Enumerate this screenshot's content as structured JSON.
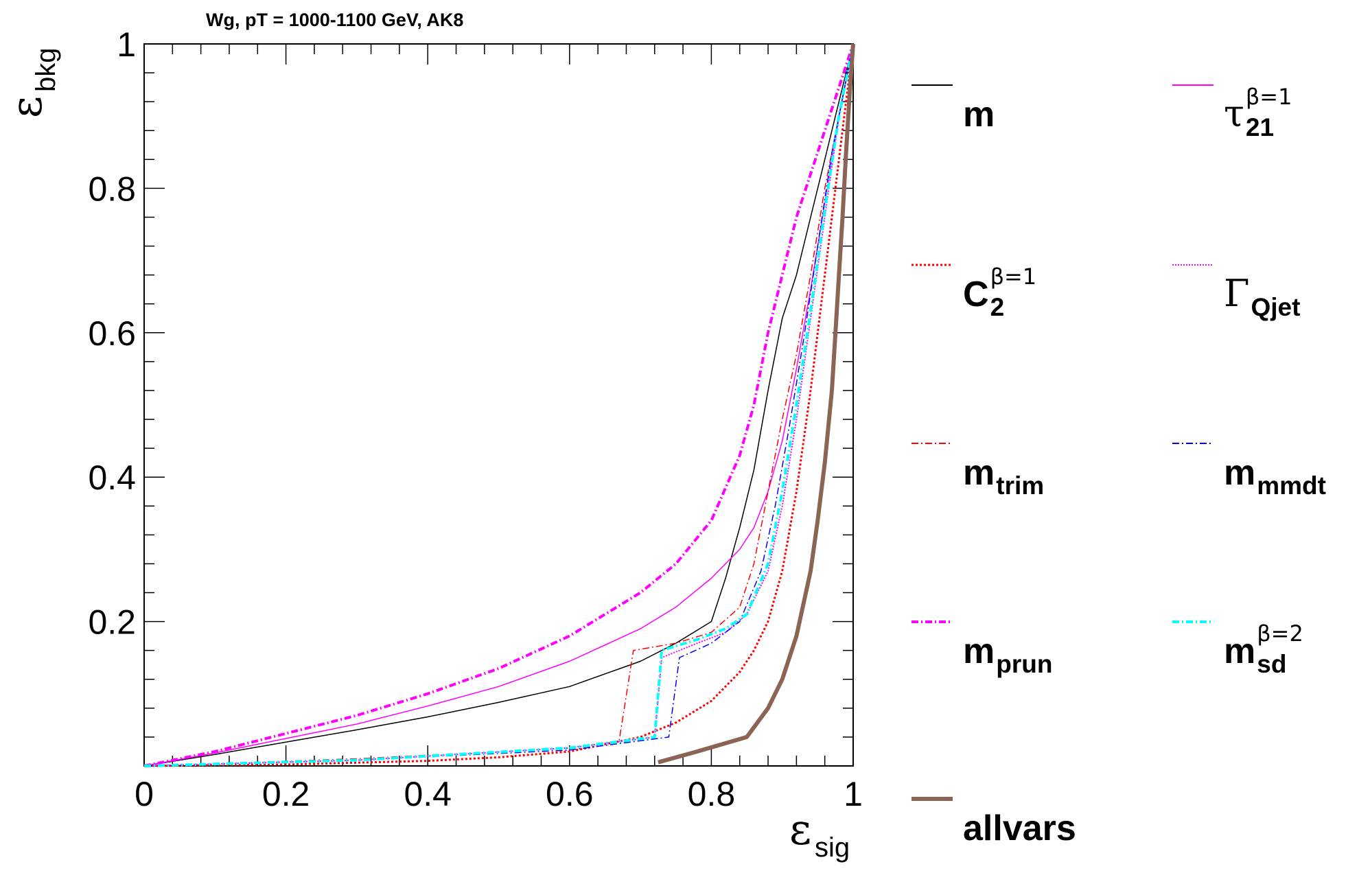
{
  "chart_data": {
    "type": "line",
    "title": "Wg, pT = 1000-1100 GeV, AK8",
    "xlabel": {
      "symbol": "ε",
      "sub": "sig"
    },
    "ylabel": {
      "symbol": "ε",
      "sub": "bkg"
    },
    "xlim": [
      0,
      1
    ],
    "ylim": [
      0,
      1
    ],
    "x_ticks": [
      "0",
      "0.2",
      "0.4",
      "0.6",
      "0.8",
      "1"
    ],
    "y_ticks": [
      "0.2",
      "0.4",
      "0.6",
      "0.8",
      "1"
    ],
    "grid": false,
    "legend": "right",
    "series": [
      {
        "key": "m",
        "color": "#000000",
        "dash": "",
        "width": 1.5,
        "label": {
          "main": "m",
          "sub": "",
          "sup": ""
        },
        "x": [
          0,
          0.1,
          0.2,
          0.3,
          0.4,
          0.5,
          0.6,
          0.7,
          0.75,
          0.8,
          0.82,
          0.84,
          0.86,
          0.88,
          0.9,
          0.92,
          0.94,
          0.96,
          0.98,
          1.0
        ],
        "y": [
          0,
          0.016,
          0.033,
          0.05,
          0.068,
          0.088,
          0.11,
          0.145,
          0.17,
          0.2,
          0.26,
          0.33,
          0.41,
          0.52,
          0.62,
          0.68,
          0.76,
          0.84,
          0.92,
          1.0
        ]
      },
      {
        "key": "tau21",
        "color": "#ff00ff",
        "dash": "",
        "width": 1.5,
        "label": {
          "main": "τ",
          "sub": "21",
          "sup": "β=1"
        },
        "x": [
          0,
          0.1,
          0.2,
          0.3,
          0.4,
          0.5,
          0.6,
          0.7,
          0.75,
          0.8,
          0.84,
          0.86,
          0.88,
          0.9,
          0.92,
          0.94,
          0.96,
          0.98,
          1.0
        ],
        "y": [
          0,
          0.018,
          0.038,
          0.058,
          0.083,
          0.11,
          0.145,
          0.19,
          0.22,
          0.26,
          0.3,
          0.33,
          0.38,
          0.45,
          0.55,
          0.66,
          0.78,
          0.9,
          1.0
        ]
      },
      {
        "key": "c2",
        "color": "#ff0000",
        "dash": "3,3",
        "width": 3,
        "label": {
          "main": "C",
          "sub": "2",
          "sup": "β=1"
        },
        "x": [
          0,
          0.2,
          0.4,
          0.5,
          0.6,
          0.7,
          0.75,
          0.8,
          0.84,
          0.86,
          0.88,
          0.9,
          0.92,
          0.94,
          0.96,
          0.98,
          1.0
        ],
        "y": [
          0,
          0.002,
          0.007,
          0.012,
          0.02,
          0.04,
          0.06,
          0.09,
          0.13,
          0.16,
          0.2,
          0.27,
          0.38,
          0.52,
          0.68,
          0.84,
          1.0
        ]
      },
      {
        "key": "gamma",
        "color": "#ff00ff",
        "dash": "2,2",
        "width": 2,
        "label": {
          "main": "Γ",
          "sub": "Qjet",
          "sup": ""
        },
        "x": [
          0,
          0.3,
          0.6,
          0.72,
          0.73,
          0.78,
          0.82,
          0.85,
          0.88,
          0.9,
          0.92,
          0.94,
          0.96,
          0.98,
          1.0
        ],
        "y": [
          0,
          0.008,
          0.025,
          0.04,
          0.15,
          0.17,
          0.185,
          0.21,
          0.27,
          0.36,
          0.48,
          0.62,
          0.76,
          0.9,
          1.0
        ]
      },
      {
        "key": "mtrim",
        "color": "#ff0000",
        "dash": "10,4,2,4",
        "width": 1.5,
        "label": {
          "main": "m",
          "sub": "trim",
          "sup": ""
        },
        "x": [
          0,
          0.3,
          0.6,
          0.67,
          0.69,
          0.75,
          0.8,
          0.84,
          0.86,
          0.88,
          0.9,
          0.92,
          0.94,
          0.96,
          0.98,
          1.0
        ],
        "y": [
          0,
          0.01,
          0.025,
          0.035,
          0.16,
          0.17,
          0.185,
          0.22,
          0.28,
          0.38,
          0.48,
          0.57,
          0.68,
          0.8,
          0.9,
          1.0
        ]
      },
      {
        "key": "mmmdt",
        "color": "#0000ff",
        "dash": "10,4,2,4",
        "width": 1.5,
        "label": {
          "main": "m",
          "sub": "mmdt",
          "sup": ""
        },
        "x": [
          0,
          0.3,
          0.6,
          0.74,
          0.755,
          0.8,
          0.84,
          0.87,
          0.89,
          0.91,
          0.93,
          0.95,
          0.97,
          0.99,
          1.0
        ],
        "y": [
          0,
          0.008,
          0.022,
          0.04,
          0.15,
          0.17,
          0.2,
          0.27,
          0.36,
          0.47,
          0.59,
          0.72,
          0.85,
          0.95,
          1.0
        ]
      },
      {
        "key": "mprun",
        "color": "#ff00ff",
        "dash": "10,4,2,4",
        "width": 4,
        "label": {
          "main": "m",
          "sub": "prun",
          "sup": ""
        },
        "x": [
          0,
          0.1,
          0.2,
          0.3,
          0.4,
          0.5,
          0.6,
          0.7,
          0.75,
          0.8,
          0.84,
          0.86,
          0.88,
          0.9,
          0.92,
          0.94,
          0.96,
          0.98,
          1.0
        ],
        "y": [
          0,
          0.02,
          0.045,
          0.07,
          0.1,
          0.135,
          0.18,
          0.24,
          0.28,
          0.34,
          0.43,
          0.5,
          0.6,
          0.68,
          0.76,
          0.82,
          0.88,
          0.94,
          1.0
        ]
      },
      {
        "key": "msd",
        "color": "#00ffff",
        "dash": "10,4,2,4",
        "width": 4,
        "label": {
          "main": "m",
          "sub": "sd",
          "sup": "β=2"
        },
        "x": [
          0,
          0.3,
          0.6,
          0.72,
          0.73,
          0.78,
          0.82,
          0.85,
          0.88,
          0.9,
          0.92,
          0.94,
          0.96,
          0.98,
          1.0
        ],
        "y": [
          0,
          0.008,
          0.025,
          0.04,
          0.16,
          0.175,
          0.19,
          0.21,
          0.28,
          0.38,
          0.5,
          0.63,
          0.77,
          0.9,
          1.0
        ]
      },
      {
        "key": "allvars",
        "color": "#8b6456",
        "dash": "",
        "width": 6,
        "label": {
          "main": "allvars",
          "sub": "",
          "sup": ""
        },
        "x": [
          0.725,
          0.78,
          0.85,
          0.88,
          0.9,
          0.92,
          0.94,
          0.95,
          0.96,
          0.97,
          0.975,
          0.98,
          0.985,
          0.99,
          0.995,
          1.0
        ],
        "y": [
          0.005,
          0.02,
          0.04,
          0.08,
          0.12,
          0.18,
          0.27,
          0.34,
          0.42,
          0.52,
          0.6,
          0.68,
          0.76,
          0.85,
          0.93,
          1.0
        ]
      }
    ]
  }
}
